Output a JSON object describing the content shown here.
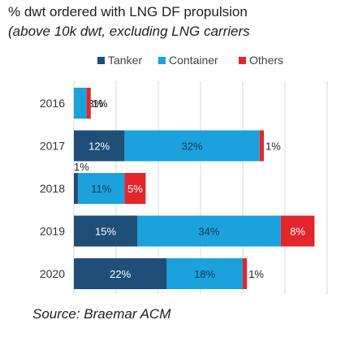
{
  "title": "% dwt ordered with LNG DF propulsion",
  "subtitle": "(above 10k dwt, excluding LNG carriers",
  "source": "Source: Braemar ACM",
  "chart_data": {
    "type": "bar",
    "orientation": "horizontal",
    "stacked": true,
    "categories": [
      "2016",
      "2017",
      "2018",
      "2019",
      "2020"
    ],
    "series": [
      {
        "name": "Tanker",
        "color": "#1f4e79",
        "values": [
          0,
          12,
          1,
          15,
          22
        ],
        "labels": [
          "",
          "12%",
          "1%",
          "15%",
          "22%"
        ]
      },
      {
        "name": "Container",
        "color": "#1ba1dc",
        "values": [
          3,
          32,
          11,
          34,
          18
        ],
        "labels": [
          "3%",
          "32%",
          "11%",
          "34%",
          "18%"
        ]
      },
      {
        "name": "Others",
        "color": "#e3262b",
        "values": [
          1,
          1,
          5,
          8,
          1
        ],
        "labels": [
          "1%",
          "1%",
          "5%",
          "8%",
          "1%"
        ]
      }
    ],
    "xlim": [
      0,
      60
    ],
    "grid": true,
    "legend_position": "top"
  }
}
